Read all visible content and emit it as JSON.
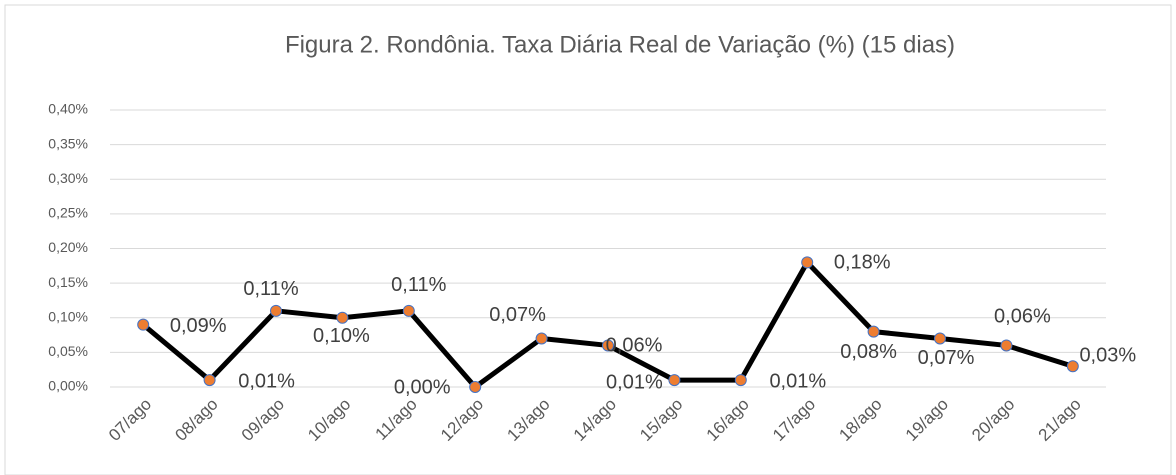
{
  "chart_data": {
    "type": "line",
    "title": "Figura 2. Rondônia. Taxa Diária Real de Variação (%)  (15 dias)",
    "categories": [
      "07/ago",
      "08/ago",
      "09/ago",
      "10/ago",
      "11/ago",
      "12/ago",
      "13/ago",
      "14/ago",
      "15/ago",
      "16/ago",
      "17/ago",
      "18/ago",
      "19/ago",
      "20/ago",
      "21/ago"
    ],
    "series": [
      {
        "name": "Taxa Diária",
        "color": "#000000",
        "marker_color": "#ed7d31",
        "values": [
          0.09,
          0.01,
          0.11,
          0.1,
          0.11,
          0.0,
          0.07,
          0.06,
          0.01,
          0.01,
          0.18,
          0.08,
          0.07,
          0.06,
          0.03
        ],
        "value_labels": [
          "0,09%",
          "0,01%",
          "0,11%",
          "0,10%",
          "0,11%",
          "0,00%",
          "0,07%",
          "0,06%",
          "0,01%",
          "0,01%",
          "0,18%",
          "0,08%",
          "0,07%",
          "0,06%",
          "0,03%"
        ]
      }
    ],
    "ylim": [
      0,
      0.4
    ],
    "yticks": [
      {
        "value": 0,
        "label": "0,00%"
      },
      {
        "value": 0.05,
        "label": "0,05%"
      },
      {
        "value": 0.1,
        "label": "0,10%"
      },
      {
        "value": 0.15,
        "label": "0,15%"
      },
      {
        "value": 0.2,
        "label": "0,20%"
      },
      {
        "value": 0.25,
        "label": "0,25%"
      },
      {
        "value": 0.3,
        "label": "0,30%"
      },
      {
        "value": 0.35,
        "label": "0,35%"
      },
      {
        "value": 0.4,
        "label": "0,40%"
      }
    ],
    "grid": true
  }
}
